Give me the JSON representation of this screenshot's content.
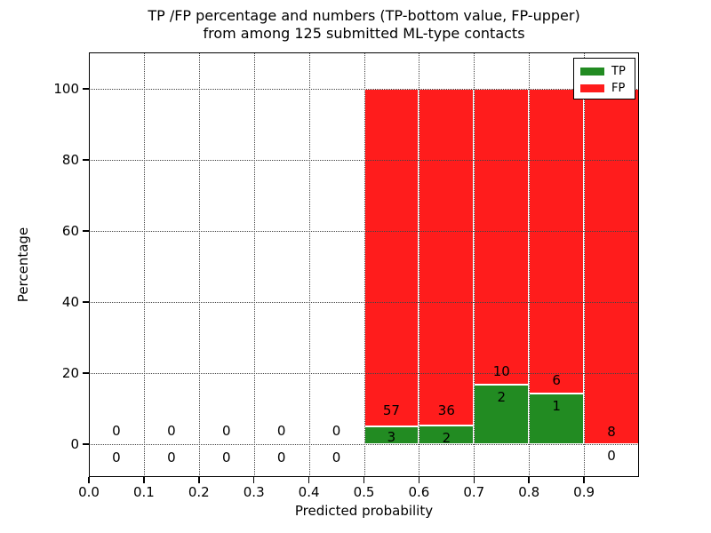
{
  "chart_data": {
    "type": "bar",
    "stacked": true,
    "title": "TP /FP percentage and numbers (TP-bottom value, FP-upper)\nfrom among 125 submitted ML-type contacts",
    "total_contacts": 125,
    "xlabel": "Predicted probability",
    "ylabel": "Percentage",
    "xlim": [
      0.0,
      1.0
    ],
    "ylim": [
      -9.25,
      110.25
    ],
    "xticks": [
      "0.0",
      "0.1",
      "0.2",
      "0.3",
      "0.4",
      "0.5",
      "0.6",
      "0.7",
      "0.8",
      "0.9"
    ],
    "xtick_values": [
      0.0,
      0.1,
      0.2,
      0.3,
      0.4,
      0.5,
      0.6,
      0.7,
      0.8,
      0.9
    ],
    "yticks": [
      0,
      20,
      40,
      60,
      80,
      100
    ],
    "grid": true,
    "legend_position": "upper right",
    "legend": [
      {
        "label": "TP",
        "color": "#228b22"
      },
      {
        "label": "FP",
        "color": "#ff1c1c"
      }
    ],
    "bins": [
      {
        "x0": 0.0,
        "x1": 0.1,
        "tp": 0,
        "fp": 0,
        "tp_pct": 0,
        "fp_pct": 0,
        "fp_label_y": 3.75,
        "tp_label_y": -3.75
      },
      {
        "x0": 0.1,
        "x1": 0.2,
        "tp": 0,
        "fp": 0,
        "tp_pct": 0,
        "fp_pct": 0,
        "fp_label_y": 3.75,
        "tp_label_y": -3.75
      },
      {
        "x0": 0.2,
        "x1": 0.3,
        "tp": 0,
        "fp": 0,
        "tp_pct": 0,
        "fp_pct": 0,
        "fp_label_y": 3.75,
        "tp_label_y": -3.75
      },
      {
        "x0": 0.3,
        "x1": 0.4,
        "tp": 0,
        "fp": 0,
        "tp_pct": 0,
        "fp_pct": 0,
        "fp_label_y": 3.75,
        "tp_label_y": -3.75
      },
      {
        "x0": 0.4,
        "x1": 0.5,
        "tp": 0,
        "fp": 0,
        "tp_pct": 0,
        "fp_pct": 0,
        "fp_label_y": 3.75,
        "tp_label_y": -3.75
      },
      {
        "x0": 0.5,
        "x1": 0.6,
        "tp": 3,
        "fp": 57,
        "tp_pct": 5.0,
        "fp_pct": 95.0,
        "fp_label_y": 9.5,
        "tp_label_y": 2.0
      },
      {
        "x0": 0.6,
        "x1": 0.7,
        "tp": 2,
        "fp": 36,
        "tp_pct": 5.26,
        "fp_pct": 94.74,
        "fp_label_y": 9.5,
        "tp_label_y": 1.75
      },
      {
        "x0": 0.7,
        "x1": 0.8,
        "tp": 2,
        "fp": 10,
        "tp_pct": 16.67,
        "fp_pct": 83.33,
        "fp_label_y": 20.5,
        "tp_label_y": 13.25
      },
      {
        "x0": 0.8,
        "x1": 0.9,
        "tp": 1,
        "fp": 6,
        "tp_pct": 14.29,
        "fp_pct": 85.71,
        "fp_label_y": 18.0,
        "tp_label_y": 10.75
      },
      {
        "x0": 0.9,
        "x1": 1.0,
        "tp": 0,
        "fp": 8,
        "tp_pct": 0,
        "fp_pct": 100.0,
        "fp_label_y": 3.5,
        "tp_label_y": -3.25
      }
    ]
  }
}
